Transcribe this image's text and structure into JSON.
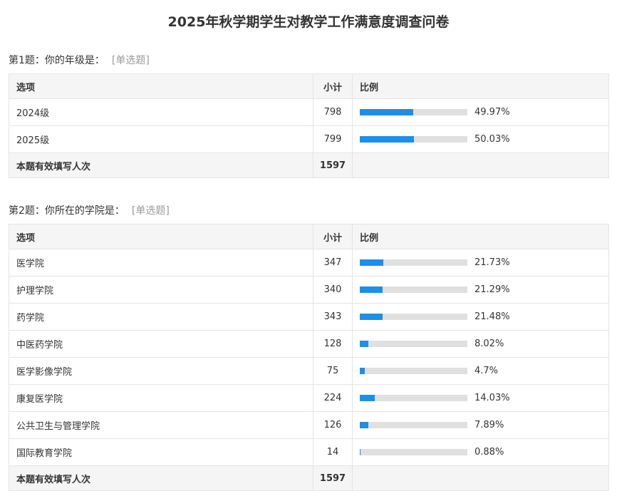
{
  "page": {
    "title": "2025年秋学期学生对教学工作满意度调查问卷"
  },
  "headers": {
    "option": "选项",
    "count": "小计",
    "ratio": "比例"
  },
  "colors": {
    "bar_fill": "#1e8fe8",
    "bar_track": "#e0e0e0",
    "header_bg": "#f5f5f5"
  },
  "questions": [
    {
      "title": "第1题：你的年级是：",
      "type": "[单选题]",
      "rows": [
        {
          "label": "2024级",
          "count": "798",
          "percent_text": "49.97%",
          "percent": 49.97
        },
        {
          "label": "2025级",
          "count": "799",
          "percent_text": "50.03%",
          "percent": 50.03
        }
      ],
      "total_label": "本题有效填写人次",
      "total": "1597"
    },
    {
      "title": "第2题：你所在的学院是：",
      "type": "[单选题]",
      "rows": [
        {
          "label": "医学院",
          "count": "347",
          "percent_text": "21.73%",
          "percent": 21.73
        },
        {
          "label": "护理学院",
          "count": "340",
          "percent_text": "21.29%",
          "percent": 21.29
        },
        {
          "label": "药学院",
          "count": "343",
          "percent_text": "21.48%",
          "percent": 21.48
        },
        {
          "label": "中医药学院",
          "count": "128",
          "percent_text": "8.02%",
          "percent": 8.02
        },
        {
          "label": "医学影像学院",
          "count": "75",
          "percent_text": "4.7%",
          "percent": 4.7
        },
        {
          "label": "康复医学院",
          "count": "224",
          "percent_text": "14.03%",
          "percent": 14.03
        },
        {
          "label": "公共卫生与管理学院",
          "count": "126",
          "percent_text": "7.89%",
          "percent": 7.89
        },
        {
          "label": "国际教育学院",
          "count": "14",
          "percent_text": "0.88%",
          "percent": 0.88
        }
      ],
      "total_label": "本题有效填写人次",
      "total": "1597"
    }
  ]
}
